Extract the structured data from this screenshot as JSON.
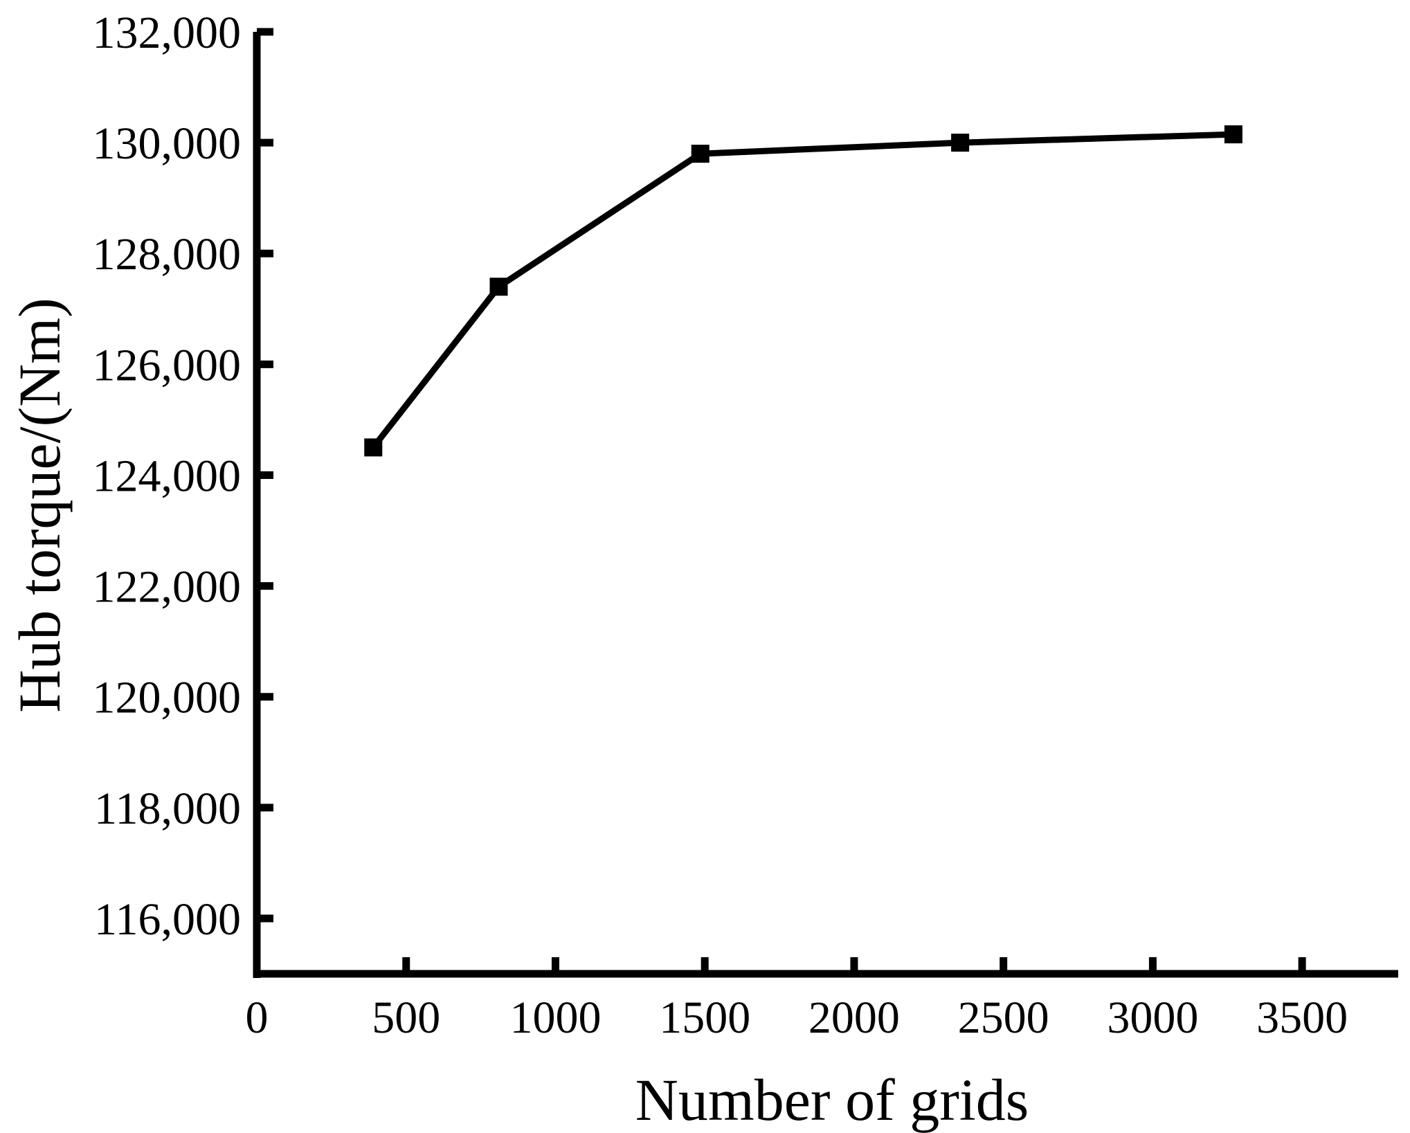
{
  "chart_data": {
    "type": "line",
    "title": "",
    "xlabel": "Number of grids",
    "ylabel": "Hub torque/(Nm)",
    "xlim": [
      0,
      3750
    ],
    "ylim": [
      115000,
      132000
    ],
    "x_ticks": [
      0,
      500,
      1000,
      1500,
      2000,
      2500,
      3000,
      3500
    ],
    "x_tick_labels": [
      "0",
      "500",
      "1000",
      "1500",
      "2000",
      "2500",
      "3000",
      "3500"
    ],
    "y_ticks": [
      116000,
      118000,
      120000,
      122000,
      124000,
      126000,
      128000,
      130000,
      132000
    ],
    "y_tick_labels": [
      "116,000",
      "118,000",
      "120,000",
      "122,000",
      "124,000",
      "126,000",
      "128,000",
      "130,000",
      "132,000"
    ],
    "grid": false,
    "legend": "none",
    "series": [
      {
        "x": [
          390,
          810,
          1485,
          2355,
          3270
        ],
        "values": [
          124500,
          127400,
          129800,
          130000,
          130150
        ],
        "color": "#000000",
        "marker": "square"
      }
    ]
  }
}
